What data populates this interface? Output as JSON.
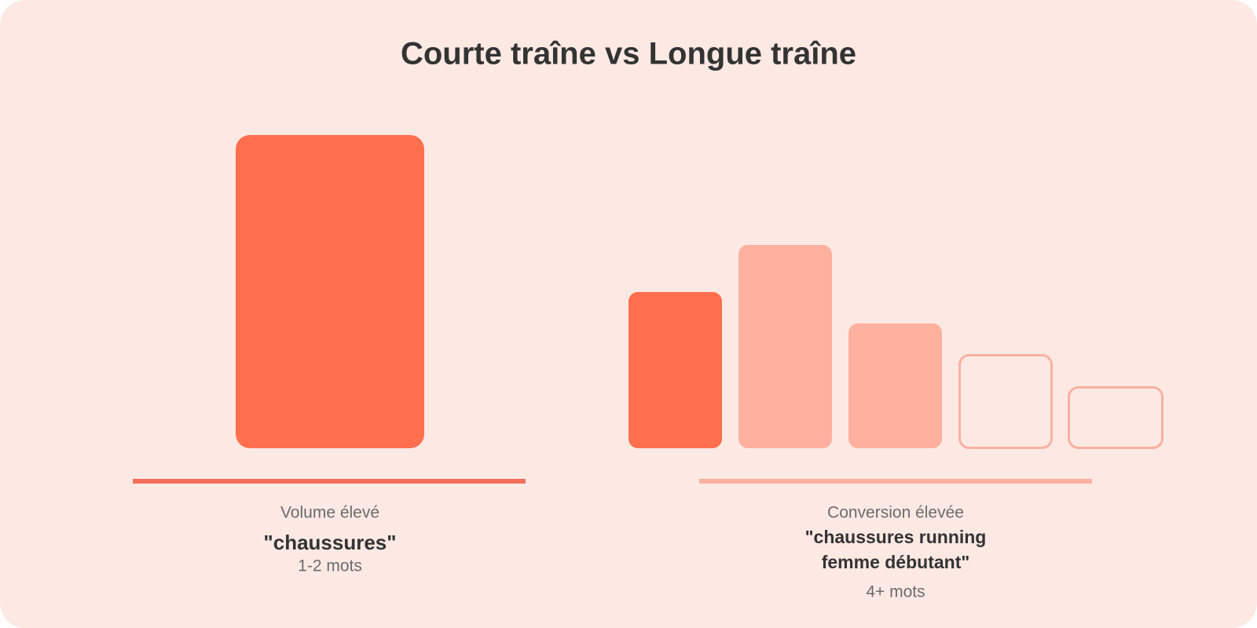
{
  "title": "Courte traîne vs Longue traîne",
  "short_tail": {
    "label": "Volume élevé",
    "example": "\"chaussures\"",
    "words": "1-2 mots"
  },
  "long_tail": {
    "label": "Conversion élevée",
    "example_lines": [
      "\"chaussures running",
      "femme débutant\""
    ],
    "words": "4+ mots"
  }
}
